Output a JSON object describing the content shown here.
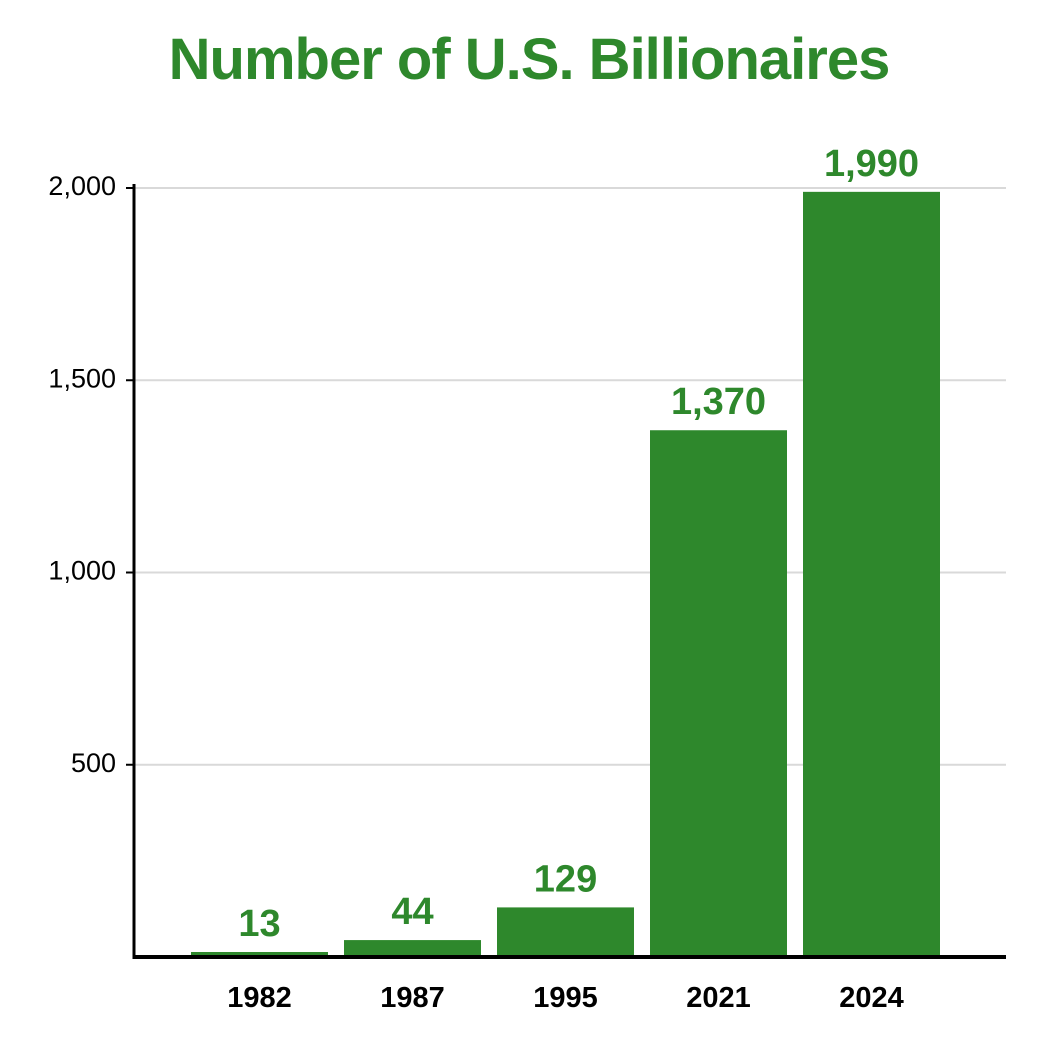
{
  "colors": {
    "bar": "#2e882c",
    "title": "#2e882c",
    "data_label": "#2e882c",
    "grid": "#d9d9d9",
    "axis": "#000000",
    "text": "#000000"
  },
  "chart_data": {
    "type": "bar",
    "title": "Number of U.S. Billionaires",
    "xlabel": "",
    "ylabel": "",
    "categories": [
      "1982",
      "1987",
      "1995",
      "2021",
      "2024"
    ],
    "values": [
      13,
      44,
      129,
      1370,
      1990
    ],
    "value_labels": [
      "13",
      "44",
      "129",
      "1,370",
      "1,990"
    ],
    "ylim": [
      0,
      2000
    ],
    "y_ticks": [
      {
        "value": 500,
        "label": "500"
      },
      {
        "value": 1000,
        "label": "1,000"
      },
      {
        "value": 1500,
        "label": "1,500"
      },
      {
        "value": 2000,
        "label": "2,000"
      }
    ],
    "grid": true,
    "legend": "none"
  }
}
